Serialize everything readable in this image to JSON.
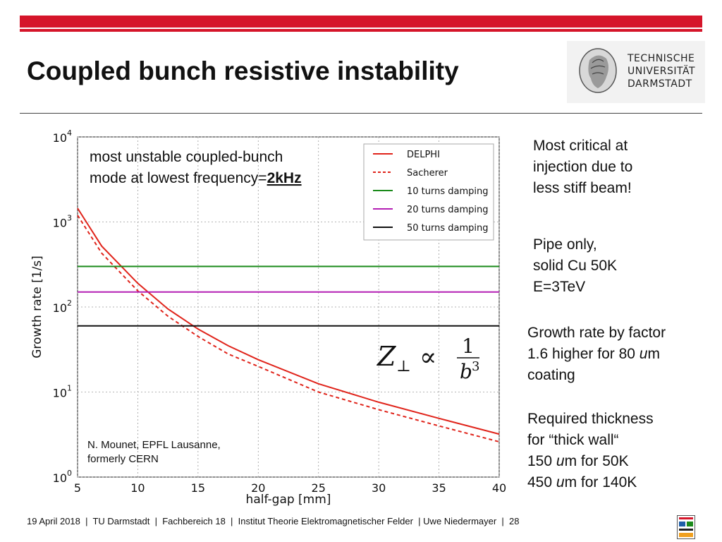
{
  "slide": {
    "title": "Coupled bunch resistive instability",
    "logo_text": [
      "TECHNISCHE",
      "UNIVERSITÄT",
      "DARMSTADT"
    ],
    "accent_color": "#d5152a"
  },
  "chart_data": {
    "type": "line",
    "title": "",
    "xlabel": "half-gap [mm]",
    "ylabel": "Growth rate [1/s]",
    "xlim": [
      5,
      40
    ],
    "ylim": [
      1,
      10000
    ],
    "yscale": "log",
    "xticks": [
      5,
      10,
      15,
      20,
      25,
      30,
      35,
      40
    ],
    "yticks": [
      {
        "exp": "0",
        "value": 1
      },
      {
        "exp": "1",
        "value": 10
      },
      {
        "exp": "2",
        "value": 100
      },
      {
        "exp": "3",
        "value": 1000
      },
      {
        "exp": "4",
        "value": 10000
      }
    ],
    "tick_base": "10",
    "grid": true,
    "legend_position": "top-right",
    "series": [
      {
        "name": "DELPHI",
        "color": "#e0241b",
        "style": "solid",
        "x": [
          5,
          7,
          10,
          12.5,
          15,
          17.5,
          20,
          25,
          30,
          35,
          40
        ],
        "y": [
          1450,
          520,
          190,
          95,
          55,
          35,
          24,
          12.5,
          7.6,
          4.9,
          3.2
        ]
      },
      {
        "name": "Sacherer",
        "color": "#e0241b",
        "style": "dashed",
        "x": [
          5,
          7,
          10,
          12.5,
          15,
          17.5,
          20,
          25,
          30,
          35,
          40
        ],
        "y": [
          1200,
          430,
          155,
          78,
          45,
          28,
          20,
          10,
          6.2,
          4.0,
          2.6
        ]
      },
      {
        "name": "10 turns damping",
        "color": "#1a8a1a",
        "style": "solid",
        "x": [
          5,
          40
        ],
        "y": [
          300,
          300
        ]
      },
      {
        "name": "20 turns damping",
        "color": "#b41fb4",
        "style": "solid",
        "x": [
          5,
          40
        ],
        "y": [
          150,
          150
        ]
      },
      {
        "name": "50 turns damping",
        "color": "#111111",
        "style": "solid",
        "x": [
          5,
          40
        ],
        "y": [
          60,
          60
        ]
      }
    ],
    "annotations": {
      "mode_line1": "most unstable coupled-bunch",
      "mode_line2_prefix": "mode at lowest frequency=",
      "mode_line2_value": "2kHz",
      "formula_lhs": "Z",
      "formula_sub": "⊥",
      "formula_rel": "∝",
      "formula_num": "1",
      "formula_den": "b",
      "formula_den_exp": "3",
      "credit_line1": "N. Mounet, EPFL Lausanne,",
      "credit_line2": "formerly CERN"
    }
  },
  "notes": {
    "critical": [
      "Most critical at",
      "injection due to",
      "less stiff beam!"
    ],
    "pipe": [
      "Pipe only,",
      "solid Cu 50K",
      "E=3TeV"
    ],
    "growth": {
      "line1": "Growth rate by factor",
      "line2_pre": "1.6 higher for 80 ",
      "line2_unit": "u",
      "line2_post": "m",
      "line3": "coating"
    },
    "thickness": {
      "line1": "Required thickness",
      "line2": "for “thick wall“",
      "line3_pre": "150 ",
      "line3_unit": "u",
      "line3_post": "m for 50K",
      "line4_pre": "450 ",
      "line4_unit": "u",
      "line4_post": "m for 140K"
    }
  },
  "footer": {
    "text": "19 April 2018  |  TU Darmstadt  |  Fachbereich 18  |  Institut Theorie Elektromagnetischer Felder  | Uwe Niedermayer  |  28"
  }
}
